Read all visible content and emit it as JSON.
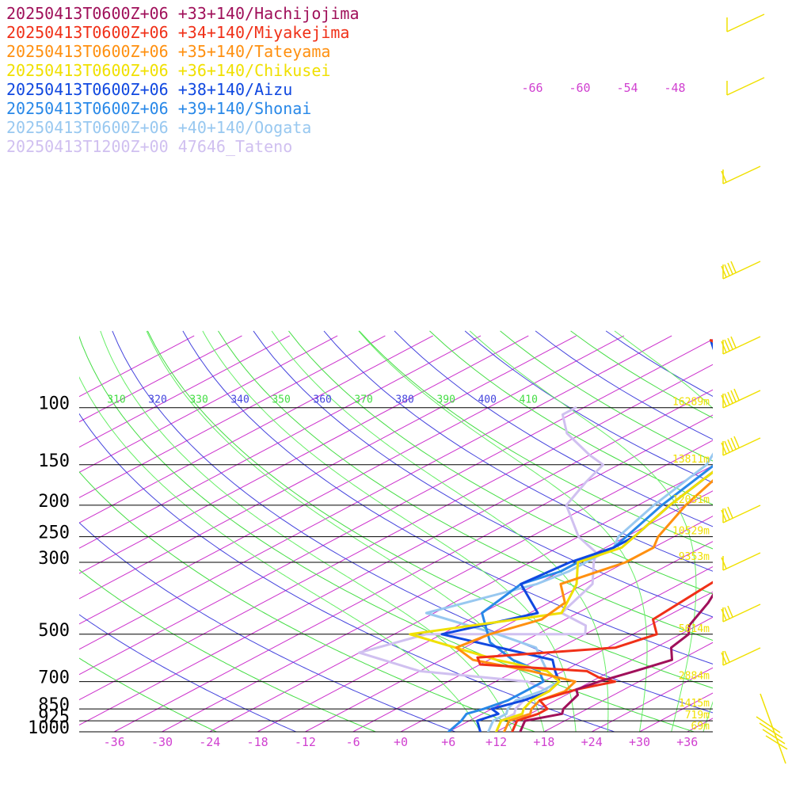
{
  "chart_data": {
    "type": "line",
    "title": "",
    "xlabel": "",
    "ylabel": "",
    "x_scale": "temperature (°C), skewed",
    "y_scale": "log pressure (hPa)",
    "ylim": [
      1000,
      60
    ],
    "xlim": [
      -39,
      39
    ],
    "legend_placement": "top-left",
    "pressure_levels": [
      {
        "p": 100,
        "label": "100",
        "height": "16289m"
      },
      {
        "p": 150,
        "label": "150",
        "height": "13811m"
      },
      {
        "p": 200,
        "label": "200",
        "height": "12031m"
      },
      {
        "p": 250,
        "label": "250",
        "height": "10529m"
      },
      {
        "p": 300,
        "label": "300",
        "height": "9353m"
      },
      {
        "p": 500,
        "label": "500",
        "height": "5614m"
      },
      {
        "p": 700,
        "label": "700",
        "height": "2884m"
      },
      {
        "p": 850,
        "label": "850",
        "height": "1415m"
      },
      {
        "p": 925,
        "label": "925",
        "height": "719m"
      },
      {
        "p": 1000,
        "label": "1000",
        "height": "69m"
      }
    ],
    "temperature_ticks": [
      "-36",
      "-30",
      "-24",
      "-18",
      "-12",
      "-6",
      "+0",
      "+6",
      "+12",
      "+18",
      "+24",
      "+30",
      "+36"
    ],
    "theta_labels": [
      {
        "label": "310",
        "color": "#44dd44"
      },
      {
        "label": "320",
        "color": "#4444dd"
      },
      {
        "label": "330",
        "color": "#44dd44"
      },
      {
        "label": "340",
        "color": "#4444dd"
      },
      {
        "label": "350",
        "color": "#44dd44"
      },
      {
        "label": "360",
        "color": "#4444dd"
      },
      {
        "label": "370",
        "color": "#44dd44"
      },
      {
        "label": "380",
        "color": "#4444dd"
      },
      {
        "label": "390",
        "color": "#44dd44"
      },
      {
        "label": "400",
        "color": "#4444dd"
      },
      {
        "label": "410",
        "color": "#44dd44"
      }
    ],
    "isotherm_labels": [
      "-66",
      "-60",
      "-54",
      "-48"
    ],
    "series": [
      {
        "name": "20250413T0600Z+06 +33+140/Hachijojima",
        "color": "#a0105a",
        "points": [
          [
            15,
            1000
          ],
          [
            13,
            925
          ],
          [
            16,
            880
          ],
          [
            15,
            850
          ],
          [
            13.5,
            770
          ],
          [
            12,
            740
          ],
          [
            13,
            700
          ],
          [
            15,
            650
          ],
          [
            17,
            600
          ],
          [
            14,
            550
          ],
          [
            13,
            500
          ],
          [
            11,
            470
          ],
          [
            8,
            400
          ],
          [
            5,
            350
          ],
          [
            3,
            300
          ],
          [
            -5,
            250
          ],
          [
            -12,
            200
          ],
          [
            -16,
            150
          ],
          [
            -19,
            120
          ],
          [
            -22,
            100
          ],
          [
            -24,
            93
          ],
          [
            -30,
            85
          ],
          [
            -40,
            75
          ],
          [
            -52,
            62
          ]
        ]
      },
      {
        "name": "20250413T0600Z+06 +34+140/Miyakejima",
        "color": "#f03018",
        "points": [
          [
            14,
            1000
          ],
          [
            12,
            925
          ],
          [
            13,
            880
          ],
          [
            13,
            850
          ],
          [
            10,
            800
          ],
          [
            12,
            740
          ],
          [
            15,
            700
          ],
          [
            12,
            680
          ],
          [
            9,
            650
          ],
          [
            -6,
            620
          ],
          [
            -8,
            590
          ],
          [
            7,
            550
          ],
          [
            9,
            500
          ],
          [
            5,
            450
          ],
          [
            3,
            300
          ],
          [
            -5,
            250
          ],
          [
            -12,
            200
          ],
          [
            -16,
            150
          ],
          [
            -19,
            120
          ],
          [
            -23,
            103
          ],
          [
            -26,
            95
          ],
          [
            -33,
            83
          ],
          [
            -45,
            70
          ],
          [
            -54,
            62
          ]
        ]
      },
      {
        "name": "20250413T0600Z+06 +35+140/Tateyama",
        "color": "#ff9010",
        "points": [
          [
            13,
            1000
          ],
          [
            11,
            925
          ],
          [
            12,
            880
          ],
          [
            11,
            850
          ],
          [
            10,
            800
          ],
          [
            11,
            750
          ],
          [
            10,
            700
          ],
          [
            2,
            650
          ],
          [
            -8,
            600
          ],
          [
            -13,
            550
          ],
          [
            -12,
            500
          ],
          [
            -9,
            450
          ],
          [
            -10,
            400
          ],
          [
            -15,
            350
          ],
          [
            -12,
            300
          ],
          [
            -12,
            270
          ],
          [
            -14,
            250
          ],
          [
            -18,
            200
          ],
          [
            -22,
            150
          ],
          [
            -25,
            120
          ],
          [
            -28,
            103
          ],
          [
            -30,
            95
          ],
          [
            -35,
            85
          ],
          [
            -44,
            72
          ],
          [
            -54,
            62
          ]
        ]
      },
      {
        "name": "20250413T0600Z+06 +36+140/Chikusei",
        "color": "#f0e000",
        "points": [
          [
            12,
            1000
          ],
          [
            10,
            925
          ],
          [
            11,
            880
          ],
          [
            10,
            850
          ],
          [
            9,
            800
          ],
          [
            9,
            750
          ],
          [
            8,
            700
          ],
          [
            4,
            650
          ],
          [
            -5,
            600
          ],
          [
            -22,
            500
          ],
          [
            -8,
            430
          ],
          [
            -13,
            350
          ],
          [
            -18,
            300
          ],
          [
            -16,
            270
          ],
          [
            -17,
            250
          ],
          [
            -20,
            200
          ],
          [
            -23,
            150
          ],
          [
            -28,
            120
          ],
          [
            -31,
            100
          ],
          [
            -34,
            90
          ],
          [
            -38,
            80
          ],
          [
            -45,
            70
          ],
          [
            -54,
            62
          ]
        ]
      },
      {
        "name": "20250413T0600Z+06 +38+140/Aizu",
        "color": "#1048e0",
        "points": [
          [
            10,
            1000
          ],
          [
            7,
            925
          ],
          [
            8,
            880
          ],
          [
            6,
            850
          ],
          [
            8,
            800
          ],
          [
            9,
            750
          ],
          [
            8,
            700
          ],
          [
            5,
            650
          ],
          [
            2,
            600
          ],
          [
            -18,
            500
          ],
          [
            -11,
            430
          ],
          [
            -20,
            350
          ],
          [
            -19,
            300
          ],
          [
            -17,
            270
          ],
          [
            -17,
            250
          ],
          [
            -20,
            200
          ],
          [
            -23,
            150
          ],
          [
            -28,
            120
          ],
          [
            -33,
            100
          ],
          [
            -37,
            90
          ],
          [
            -45,
            78
          ],
          [
            -54,
            62
          ]
        ]
      },
      {
        "name": "20250413T0600Z+06 +39+140/Shonai",
        "color": "#2888e8",
        "points": [
          [
            6,
            1000
          ],
          [
            5,
            925
          ],
          [
            4,
            880
          ],
          [
            5,
            850
          ],
          [
            6,
            800
          ],
          [
            6,
            750
          ],
          [
            6,
            700
          ],
          [
            3,
            650
          ],
          [
            -3,
            600
          ],
          [
            -10,
            530
          ],
          [
            -18,
            430
          ],
          [
            -20,
            350
          ],
          [
            -18,
            320
          ],
          [
            -18,
            300
          ],
          [
            -17,
            270
          ],
          [
            -18,
            250
          ],
          [
            -21,
            200
          ],
          [
            -24,
            150
          ],
          [
            -28,
            120
          ],
          [
            -31,
            100
          ],
          [
            -36,
            90
          ],
          [
            -44,
            78
          ],
          [
            -54,
            62
          ]
        ]
      },
      {
        "name": "20250413T0600Z+06 +40+140/Oogata",
        "color": "#98c8f0",
        "points": [
          [
            11,
            1000
          ],
          [
            9,
            925
          ],
          [
            9,
            880
          ],
          [
            8,
            850
          ],
          [
            7,
            800
          ],
          [
            8,
            750
          ],
          [
            8,
            700
          ],
          [
            4,
            650
          ],
          [
            -3,
            550
          ],
          [
            -11,
            500
          ],
          [
            -25,
            430
          ],
          [
            -18,
            350
          ],
          [
            -17,
            320
          ],
          [
            -17,
            300
          ],
          [
            -17,
            270
          ],
          [
            -19,
            250
          ],
          [
            -22,
            200
          ],
          [
            -25,
            150
          ],
          [
            -30,
            120
          ],
          [
            -31,
            100
          ],
          [
            -35,
            90
          ],
          [
            -42,
            78
          ],
          [
            -54,
            62
          ]
        ]
      },
      {
        "name": "20250413T1200Z+00 47646_Tateno",
        "color": "#d0c0f0",
        "points": [
          [
            12,
            1000
          ],
          [
            10,
            925
          ],
          [
            10,
            880
          ],
          [
            9,
            850
          ],
          [
            8,
            800
          ],
          [
            9,
            750
          ],
          [
            4,
            700
          ],
          [
            -12,
            650
          ],
          [
            -24,
            570
          ],
          [
            -20,
            500
          ],
          [
            0,
            500
          ],
          [
            -2,
            470
          ],
          [
            -8,
            430
          ],
          [
            -11,
            350
          ],
          [
            -16,
            300
          ],
          [
            -18,
            280
          ],
          [
            -24,
            250
          ],
          [
            -33,
            200
          ],
          [
            -36,
            170
          ],
          [
            -38,
            150
          ],
          [
            -42,
            140
          ],
          [
            -50,
            120
          ],
          [
            -55,
            105
          ],
          [
            -55,
            100
          ]
        ]
      }
    ]
  }
}
